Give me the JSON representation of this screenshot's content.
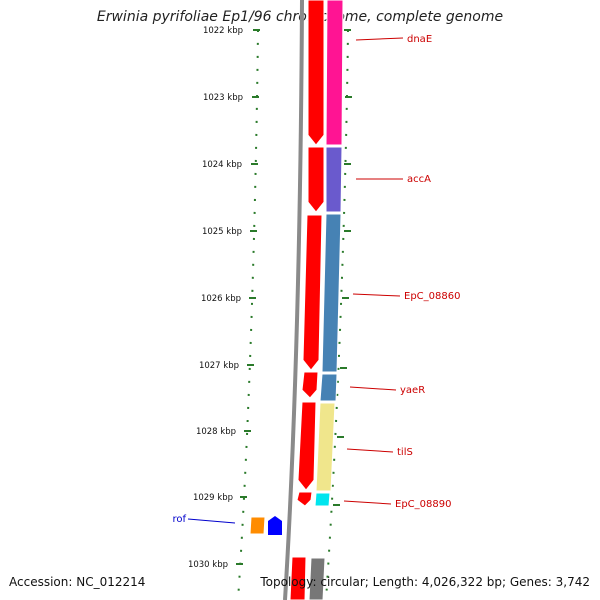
{
  "title": "Erwinia pyrifoliae Ep1/96 chromosome, complete genome",
  "accession": "Accession: NC_012214",
  "topology": "Topology: circular; Length: 4,026,322 bp; Genes: 3,742",
  "ticks": [
    "1022 kbp",
    "1023 kbp",
    "1024 kbp",
    "1025 kbp",
    "1026 kbp",
    "1027 kbp",
    "1028 kbp",
    "1029 kbp",
    "1030 kbp"
  ],
  "genes": [
    {
      "name": "dnaE",
      "color": "#cc0000"
    },
    {
      "name": "accA",
      "color": "#cc0000"
    },
    {
      "name": "EpC_08860",
      "color": "#cc0000"
    },
    {
      "name": "yaeR",
      "color": "#cc0000"
    },
    {
      "name": "tilS",
      "color": "#cc0000"
    },
    {
      "name": "EpC_08890",
      "color": "#cc0000"
    },
    {
      "name": "rof",
      "color": "#0000cc"
    }
  ],
  "colors": {
    "cds": "#ff0000",
    "backbone": "#8a8a8a",
    "tick": "#2a7a2a",
    "dnaE_cog": "#ff1493",
    "accA_cog": "#6a5acd",
    "EpC_08860_cog": "#4682b4",
    "tilS_cog": "#f0e68c",
    "EpC_08890_cog": "#00e5ee"
  }
}
